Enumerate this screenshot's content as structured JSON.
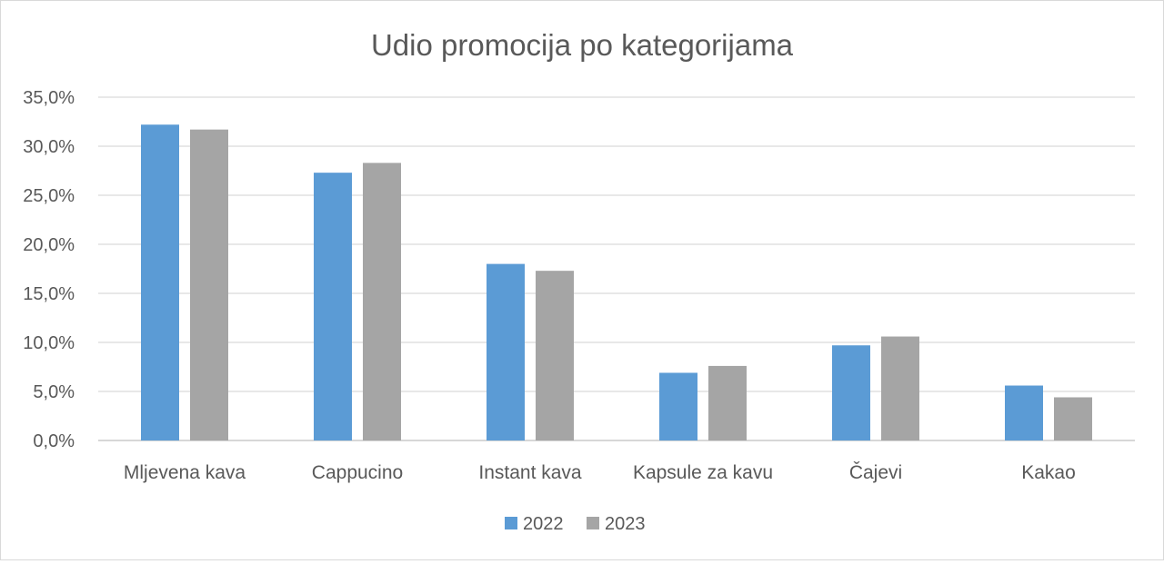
{
  "chart_data": {
    "type": "bar",
    "title": "Udio promocija po kategorijama",
    "xlabel": "",
    "ylabel": "",
    "categories": [
      "Mljevena kava",
      "Cappucino",
      "Instant kava",
      "Kapsule za kavu",
      "Čajevi",
      "Kakao"
    ],
    "series": [
      {
        "name": "2022",
        "color": "#5b9bd5",
        "values": [
          32.2,
          27.3,
          18.0,
          6.9,
          9.7,
          5.6
        ]
      },
      {
        "name": "2023",
        "color": "#a5a5a5",
        "values": [
          31.7,
          28.3,
          17.3,
          7.6,
          10.6,
          4.4
        ]
      }
    ],
    "ylim": [
      0,
      35
    ],
    "yticks": [
      "0,0%",
      "5,0%",
      "10,0%",
      "15,0%",
      "20,0%",
      "25,0%",
      "30,0%",
      "35,0%"
    ],
    "grid": true,
    "legend_position": "bottom"
  }
}
